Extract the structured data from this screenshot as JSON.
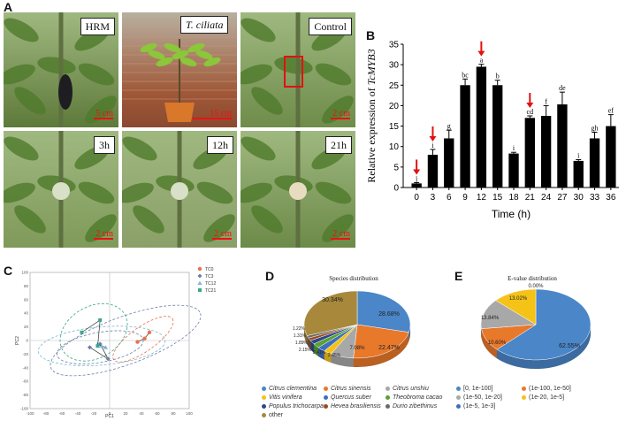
{
  "panels": {
    "A": "A",
    "B": "B",
    "C": "C",
    "D": "D",
    "E": "E"
  },
  "photos": [
    {
      "label": "HRM",
      "italic": false,
      "scale": "5 cm",
      "bg": "#5e7a3a"
    },
    {
      "label": "T. ciliata",
      "italic": true,
      "scale": "15 cm",
      "bg": "#9a5a3a"
    },
    {
      "label": "Control",
      "italic": false,
      "scale": "2 cm",
      "bg": "#6f8c4a"
    },
    {
      "label": "3h",
      "italic": false,
      "scale": "2 cm",
      "bg": "#7f9a5a"
    },
    {
      "label": "12h",
      "italic": false,
      "scale": "2 cm",
      "bg": "#8aa068"
    },
    {
      "label": "21h",
      "italic": false,
      "scale": "2 cm",
      "bg": "#6c8a48"
    }
  ],
  "chart_data": [
    {
      "type": "bar",
      "panel": "B",
      "ylabel_prefix": "Relative expression of ",
      "ylabel_gene": "TcMYB3",
      "xlabel": "Time (h)",
      "ylim": [
        0,
        35
      ],
      "yticks": [
        "0",
        "5",
        "10",
        "15",
        "20",
        "25",
        "30",
        "35"
      ],
      "categories": [
        "0",
        "3",
        "6",
        "9",
        "12",
        "15",
        "18",
        "21",
        "24",
        "27",
        "30",
        "33",
        "36"
      ],
      "values": [
        1,
        8,
        12,
        25,
        29.5,
        25,
        8.3,
        17,
        17.5,
        20.3,
        6.5,
        12,
        15
      ],
      "errors": [
        0.2,
        1.3,
        2.0,
        1.5,
        0.6,
        1.2,
        0.3,
        0.5,
        2.5,
        3.0,
        0.3,
        1.5,
        2.8
      ],
      "letters": [
        "j",
        "i",
        "g",
        "bc",
        "a",
        "b",
        "i",
        "cd",
        "f",
        "de",
        "i",
        "gh",
        "ef"
      ],
      "arrows_at": [
        "0",
        "3",
        "12",
        "21"
      ]
    },
    {
      "type": "scatter",
      "panel": "C",
      "xlabel": "PC1",
      "ylabel": "PC2",
      "xticks": [
        "-100",
        "-80",
        "-60",
        "-40",
        "-20",
        "0",
        "20",
        "40",
        "60",
        "80",
        "100"
      ],
      "yticks": [
        "100",
        "80",
        "60",
        "40",
        "20",
        "0",
        "-20",
        "-40",
        "-60",
        "-80",
        "-100"
      ],
      "series": [
        {
          "name": "TC0",
          "color": "#e8724a",
          "points": [
            [
              35,
              -2
            ],
            [
              44,
              3
            ],
            [
              50,
              12
            ]
          ]
        },
        {
          "name": "TC3",
          "color": "#6d7fa8",
          "points": [
            [
              -25,
              -10
            ],
            [
              -2,
              -27
            ],
            [
              -12,
              -5
            ]
          ]
        },
        {
          "name": "TC12",
          "color": "#7ab8d8",
          "points": [
            [
              -15,
              -5
            ],
            [
              -10,
              -8
            ],
            [
              -5,
              -10
            ]
          ]
        },
        {
          "name": "TC21",
          "color": "#3aa88a",
          "points": [
            [
              -35,
              12
            ],
            [
              -12,
              30
            ],
            [
              -15,
              -8
            ]
          ]
        }
      ]
    },
    {
      "type": "pie",
      "panel": "D",
      "title": "Species distribution",
      "slices": [
        {
          "label": "Citrus clementina",
          "value": 28.68,
          "color": "#4a86c8"
        },
        {
          "label": "Citrus sinensis",
          "value": 22.47,
          "color": "#e8782a"
        },
        {
          "label": "Citrus unshiu",
          "value": 7.08,
          "color": "#a8a8a8"
        },
        {
          "label": "Vitis vinifera",
          "value": 2.45,
          "color": "#f5c218"
        },
        {
          "label": "Quercus suber",
          "value": 2.41,
          "color": "#3d6fbf"
        },
        {
          "label": "Theobroma cacao",
          "value": 2.15,
          "color": "#5aa032"
        },
        {
          "label": "Populus trichocarpa",
          "value": 1.89,
          "color": "#2a4a88"
        },
        {
          "label": "Hevea brasiliensis",
          "value": 1.31,
          "color": "#9a4a20"
        },
        {
          "label": "Durio zibethinus",
          "value": 1.22,
          "color": "#6a6a6a"
        },
        {
          "label": "other",
          "value": 30.34,
          "color": "#a8883a"
        }
      ],
      "percent_labels": [
        "28.68%",
        "22.47%",
        "7.08%",
        "2.45%",
        "2.41%",
        "2.15%",
        "1.89%",
        "1.31%",
        "1.22%",
        "30.34%"
      ]
    },
    {
      "type": "pie",
      "panel": "E",
      "title": "E-value distribution",
      "slices": [
        {
          "label": "[0, 1e-100]",
          "value": 62.55,
          "color": "#4a86c8"
        },
        {
          "label": "(1e-100, 1e-50]",
          "value": 10.6,
          "color": "#e8782a"
        },
        {
          "label": "(1e-50, 1e-20]",
          "value": 13.84,
          "color": "#a8a8a8"
        },
        {
          "label": "(1e-20, 1e-5]",
          "value": 13.02,
          "color": "#f5c218"
        },
        {
          "label": "(1e-5, 1e-3]",
          "value": 0.0,
          "color": "#3d6fbf"
        }
      ],
      "percent_labels": [
        "62.55%",
        "10.60%",
        "13.84%",
        "13.02%",
        "0.00%"
      ]
    }
  ],
  "legend_D": [
    "Citrus clementina",
    "Citrus sinensis",
    "Citrus unshiu",
    "Vitis vinifera",
    "Quercus suber",
    "Theobroma cacao",
    "Populus trichocarpa",
    "Hevea brasiliensis",
    "Durio zibethinus",
    "other"
  ],
  "legend_E": [
    "[0, 1e-100]",
    "(1e-100, 1e-50]",
    "(1e-50, 1e-20]",
    "(1e-20, 1e-5]",
    "(1e-5, 1e-3]"
  ],
  "colors": {
    "scale": "#e11111",
    "highlight_box": "#e11111",
    "arrow": "#e11111"
  }
}
